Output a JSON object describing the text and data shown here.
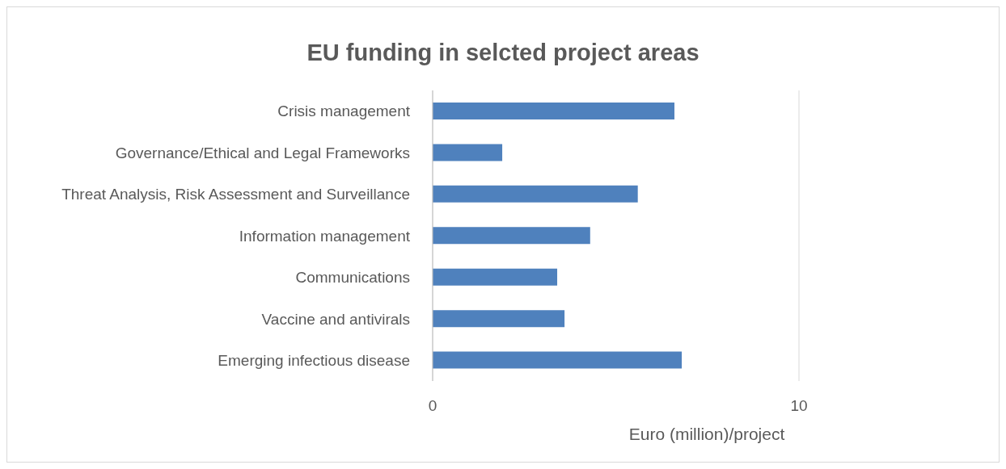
{
  "chart_data": {
    "type": "bar",
    "orientation": "horizontal",
    "title": "EU funding in selcted project areas",
    "xlabel": "Euro (million)/project",
    "categories": [
      "Crisis management",
      "Governance/Ethical and Legal Frameworks",
      "Threat Analysis, Risk Assessment and Surveillance",
      "Information management",
      "Communications",
      "Vaccine and antivirals",
      "Emerging infectious disease"
    ],
    "values": [
      6.6,
      1.9,
      5.6,
      4.3,
      3.4,
      3.6,
      6.8
    ],
    "color": "#4f81bd",
    "xlim": [
      0,
      10
    ],
    "xticks": [
      0,
      10
    ],
    "grid": "x"
  }
}
